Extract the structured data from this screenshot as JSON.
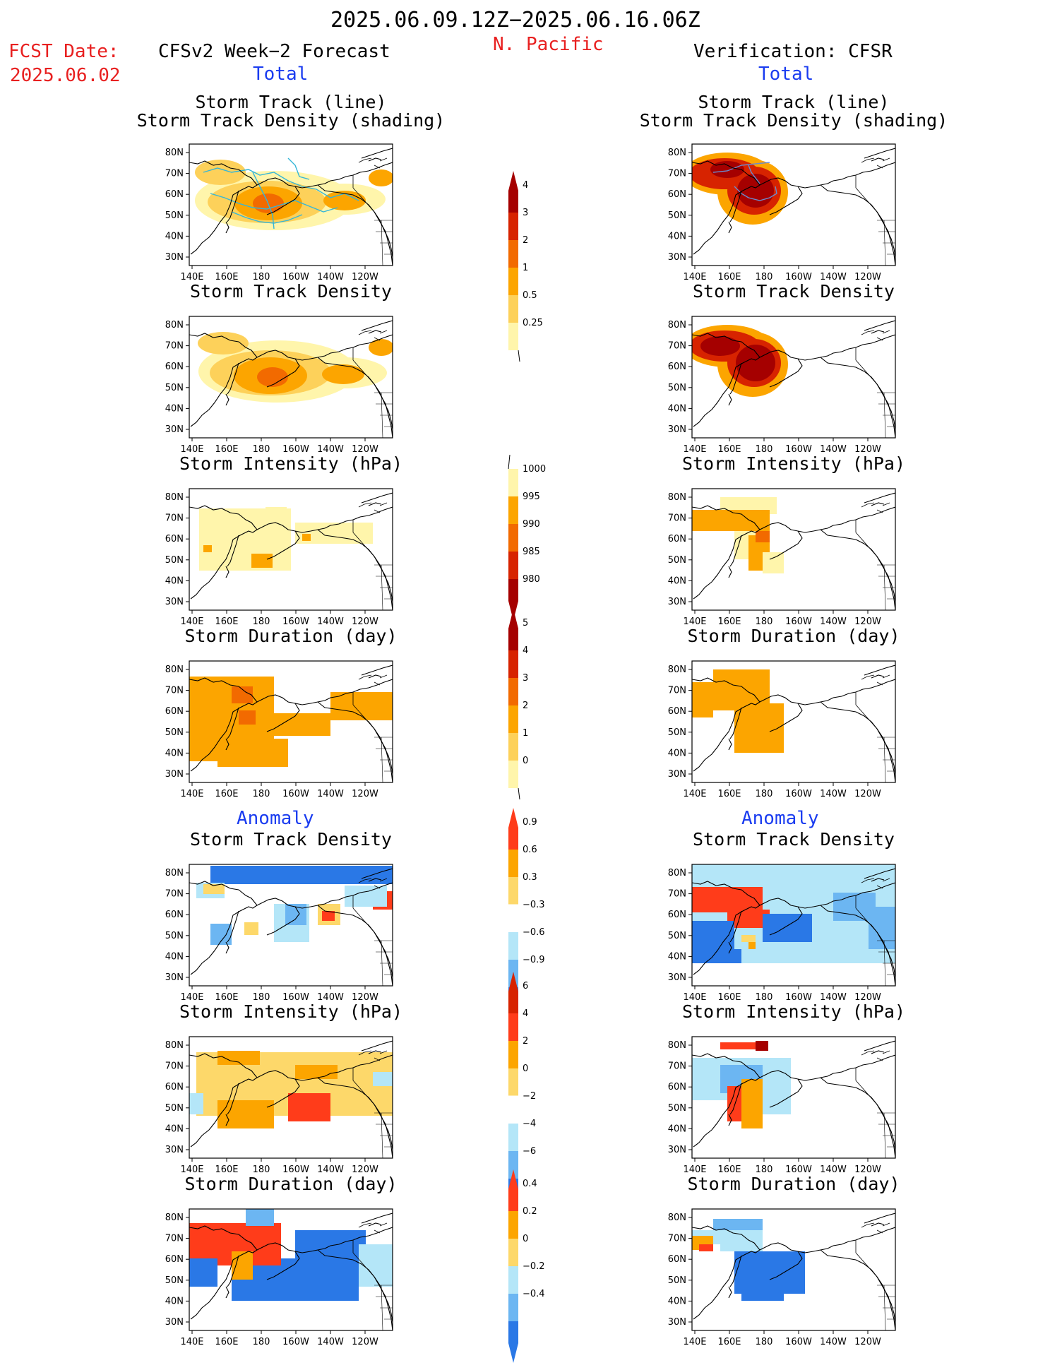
{
  "header": {
    "valid_period": "2025.06.09.12Z−2025.06.16.06Z",
    "region": "N. Pacific",
    "fcst_date_label": "FCST Date:",
    "fcst_date_value": "2025.06.02",
    "left_title": "CFSv2 Week−2 Forecast",
    "right_title": "Verification: CFSR",
    "left_total": "Total",
    "right_total": "Total",
    "left_anomaly": "Anomaly",
    "right_anomaly": "Anomaly"
  },
  "axes": {
    "lat_labels": [
      "80N",
      "70N",
      "60N",
      "50N",
      "40N",
      "30N"
    ],
    "lon_labels": [
      "140E",
      "160E",
      "180",
      "160W",
      "140W",
      "120W"
    ]
  },
  "panels": {
    "left": [
      {
        "title_line1": "Storm Track (line)",
        "title_line2": "Storm Track Density (shading)"
      },
      {
        "title_line1": "Storm Track Density",
        "title_line2": ""
      },
      {
        "title_line1": "Storm Intensity (hPa)",
        "title_line2": ""
      },
      {
        "title_line1": "Storm Duration (day)",
        "title_line2": ""
      },
      {
        "title_line1": "Storm Track Density",
        "title_line2": ""
      },
      {
        "title_line1": "Storm Intensity (hPa)",
        "title_line2": ""
      },
      {
        "title_line1": "Storm Duration (day)",
        "title_line2": ""
      }
    ],
    "right": [
      {
        "title_line1": "Storm Track (line)",
        "title_line2": "Storm Track Density (shading)"
      },
      {
        "title_line1": "Storm Track Density",
        "title_line2": ""
      },
      {
        "title_line1": "Storm Intensity (hPa)",
        "title_line2": ""
      },
      {
        "title_line1": "Storm Duration (day)",
        "title_line2": ""
      },
      {
        "title_line1": "Storm Track Density",
        "title_line2": ""
      },
      {
        "title_line1": "Storm Intensity (hPa)",
        "title_line2": ""
      },
      {
        "title_line1": "Storm Duration (day)",
        "title_line2": ""
      }
    ]
  },
  "colorbars": [
    {
      "name": "density",
      "labels": [
        "4",
        "3",
        "2",
        "1",
        "0.5",
        "0.25"
      ],
      "colors": [
        "#a50000",
        "#d72300",
        "#f26a00",
        "#fca500",
        "#fdd15a",
        "#fff5ab"
      ],
      "top_arrow": true,
      "bottom_arrow": false
    },
    {
      "name": "intensity",
      "labels": [
        "1000",
        "995",
        "990",
        "985",
        "980"
      ],
      "colors": [
        "#fff5ab",
        "#fca500",
        "#f26a00",
        "#d72300",
        "#a50000"
      ],
      "top_arrow": false,
      "bottom_arrow": true
    },
    {
      "name": "duration",
      "labels": [
        "5",
        "4",
        "3",
        "2",
        "1",
        "0"
      ],
      "colors": [
        "#a50000",
        "#d72300",
        "#f26a00",
        "#fca500",
        "#fdd15a",
        "#fff5ab"
      ],
      "top_arrow": true,
      "bottom_arrow": false
    },
    {
      "name": "anom_density",
      "labels": [
        "0.9",
        "0.6",
        "0.3",
        "−0.3",
        "−0.6",
        "−0.9"
      ],
      "colors": [
        "#ff3c1a",
        "#fca500",
        "#fdd86a",
        "#ffffff",
        "#b4e6f8",
        "#6cb6f2",
        "#2a78e6"
      ],
      "top_arrow": true,
      "bottom_arrow": true
    },
    {
      "name": "anom_intensity",
      "labels": [
        "6",
        "4",
        "2",
        "0",
        "−2",
        "−4",
        "−6"
      ],
      "colors": [
        "#d72300",
        "#ff3c1a",
        "#fca500",
        "#fdd86a",
        "#ffffff",
        "#b4e6f8",
        "#6cb6f2",
        "#2a78e6"
      ],
      "top_arrow": true,
      "bottom_arrow": true
    },
    {
      "name": "anom_duration",
      "labels": [
        "0.4",
        "0.2",
        "0",
        "−0.2",
        "−0.4"
      ],
      "colors": [
        "#ff3c1a",
        "#fca500",
        "#fdd86a",
        "#b4e6f8",
        "#6cb6f2",
        "#2a78e6"
      ],
      "top_arrow": true,
      "bottom_arrow": true
    }
  ]
}
